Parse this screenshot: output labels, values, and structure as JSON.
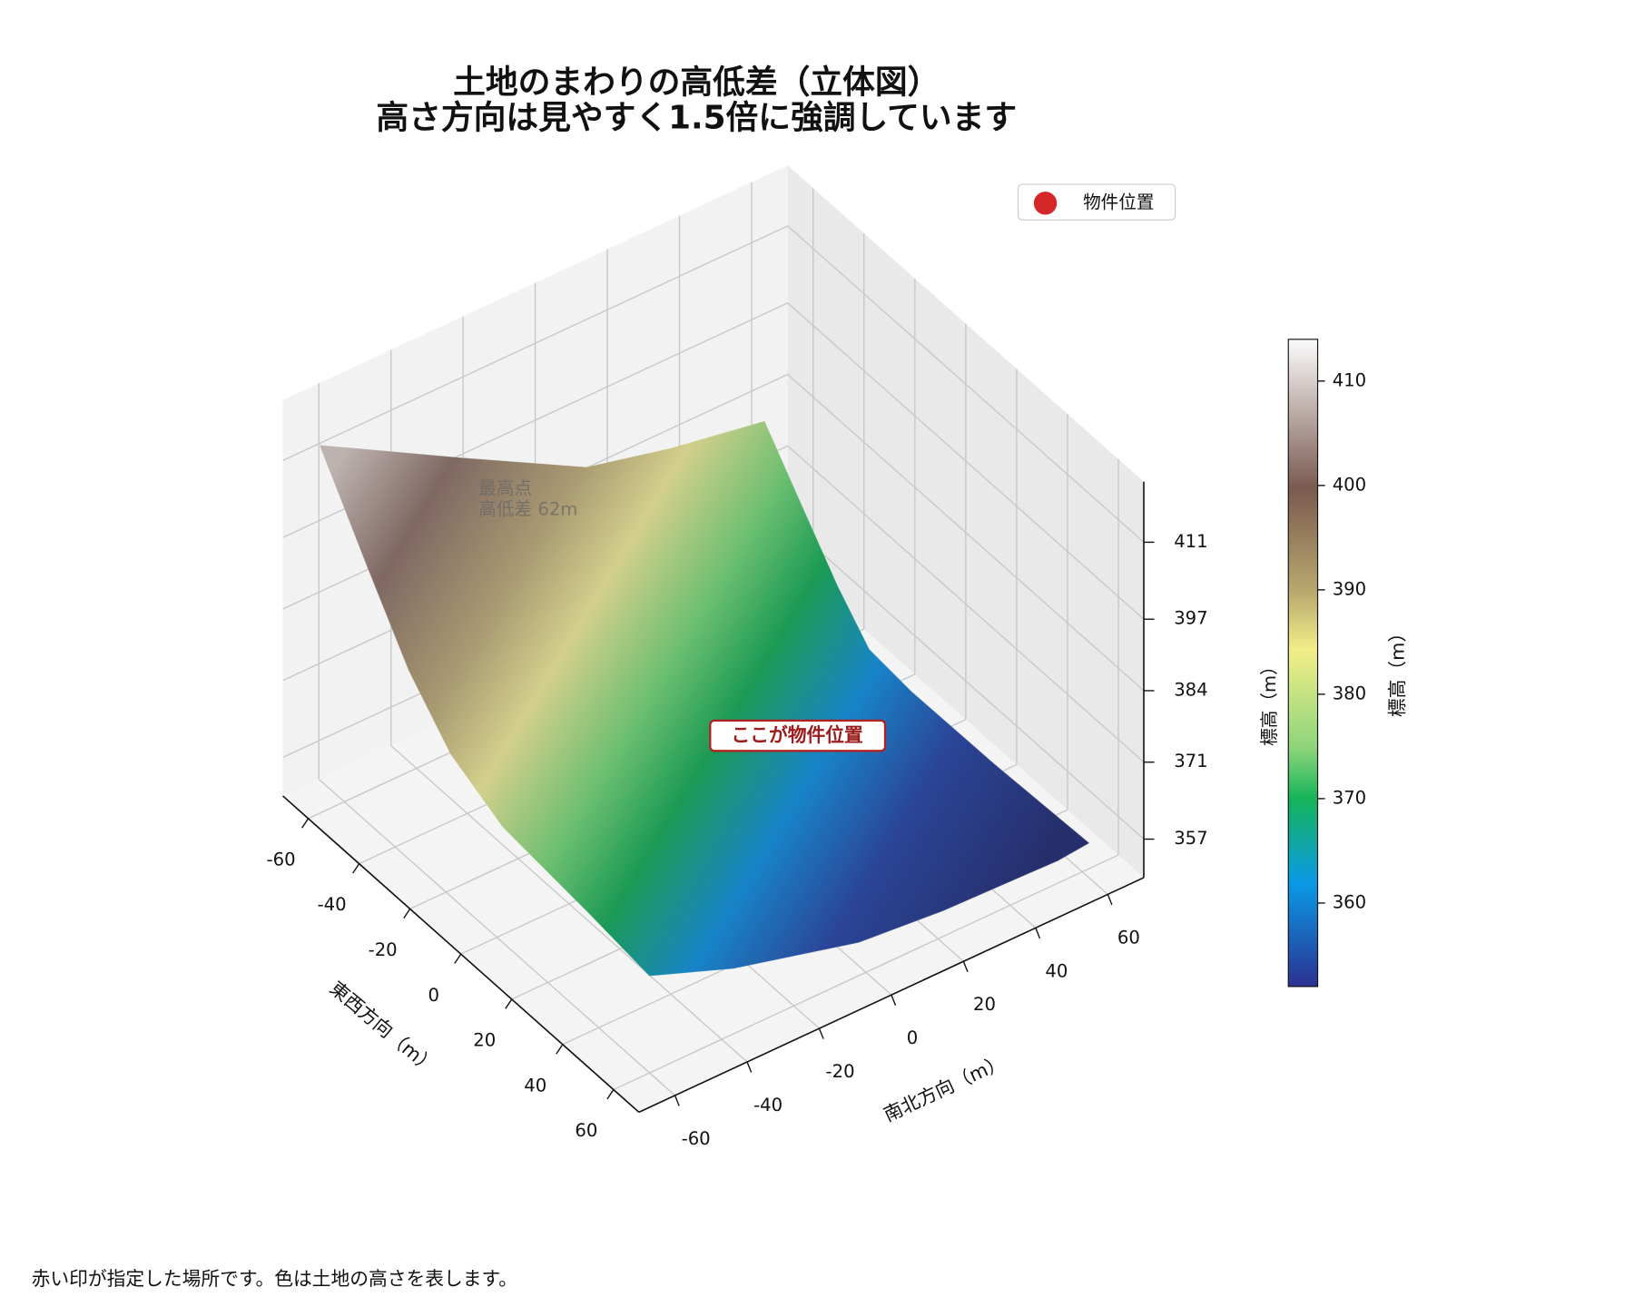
{
  "chart_data": {
    "type": "surface3d",
    "title": [
      "土地のまわりの高低差（立体図）",
      "高さ方向は見やすく1.5倍に強調しています"
    ],
    "xlabel": "東西方向（m）",
    "ylabel": "南北方向（m）",
    "zlabel": "標高（m）",
    "xlim": [
      -70,
      70
    ],
    "xticks": [
      -60,
      -40,
      -20,
      0,
      20,
      40,
      60
    ],
    "ylim": [
      -70,
      70
    ],
    "yticks": [
      -60,
      -40,
      -20,
      0,
      20,
      40,
      60
    ],
    "zlim": [
      350,
      422
    ],
    "zticks": [
      357,
      371,
      384,
      397,
      411
    ],
    "grid": true,
    "series": [
      {
        "name": "物件位置",
        "color": "#d62728"
      }
    ],
    "legend": "upper right",
    "annotations": [
      {
        "text": "ここが物件位置"
      },
      {
        "text": "最高点"
      },
      {
        "text": "高低差 62m"
      }
    ],
    "colorbar": {
      "label": "標高（m）",
      "lim": [
        352,
        414
      ],
      "ticks": [
        360,
        370,
        380,
        390,
        400,
        410
      ]
    },
    "footer": "赤い印が指定した場所です。色は土地の高さを表します。"
  }
}
